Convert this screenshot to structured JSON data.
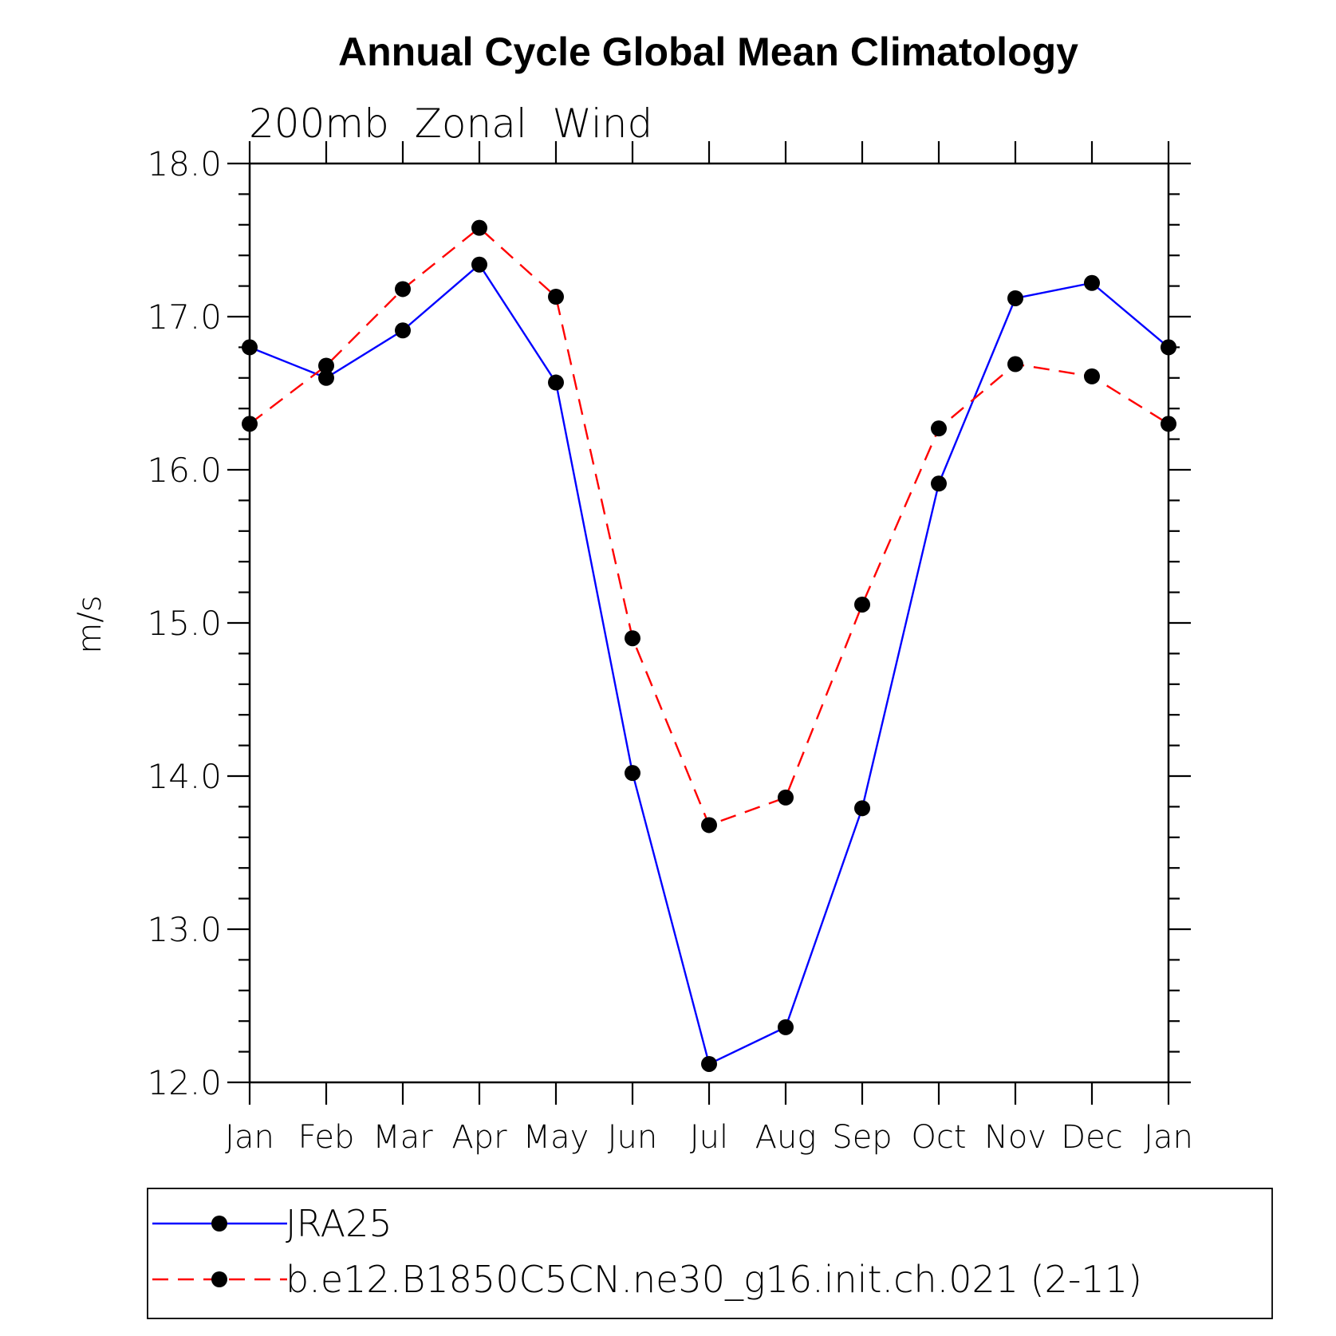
{
  "chart_data": {
    "type": "line",
    "title": "Annual Cycle Global Mean Climatology",
    "subtitle": "200mb  Zonal  Wind",
    "ylabel": "m/s",
    "xlabel": "",
    "categories": [
      "Jan",
      "Feb",
      "Mar",
      "Apr",
      "May",
      "Jun",
      "Jul",
      "Aug",
      "Sep",
      "Oct",
      "Nov",
      "Dec",
      "Jan"
    ],
    "ylim": [
      12.0,
      18.0
    ],
    "yticks": [
      "12.0",
      "13.0",
      "14.0",
      "15.0",
      "16.0",
      "17.0",
      "18.0"
    ],
    "y_minor_step": 0.2,
    "grid": false,
    "legend_position": "bottom",
    "series": [
      {
        "name": "JRA25",
        "color": "#0000ff",
        "line_style": "solid",
        "marker": "filled-circle",
        "values": [
          16.8,
          16.6,
          16.91,
          17.34,
          16.57,
          14.02,
          12.12,
          12.36,
          13.79,
          15.91,
          17.12,
          17.22,
          16.8
        ]
      },
      {
        "name": "b.e12.B1850C5CN.ne30_g16.init.ch.021 (2-11)",
        "color": "#ff0000",
        "line_style": "dashed",
        "marker": "filled-circle",
        "values": [
          16.3,
          16.68,
          17.18,
          17.58,
          17.13,
          14.9,
          13.68,
          13.86,
          15.12,
          16.27,
          16.69,
          16.61,
          16.3
        ]
      }
    ]
  }
}
